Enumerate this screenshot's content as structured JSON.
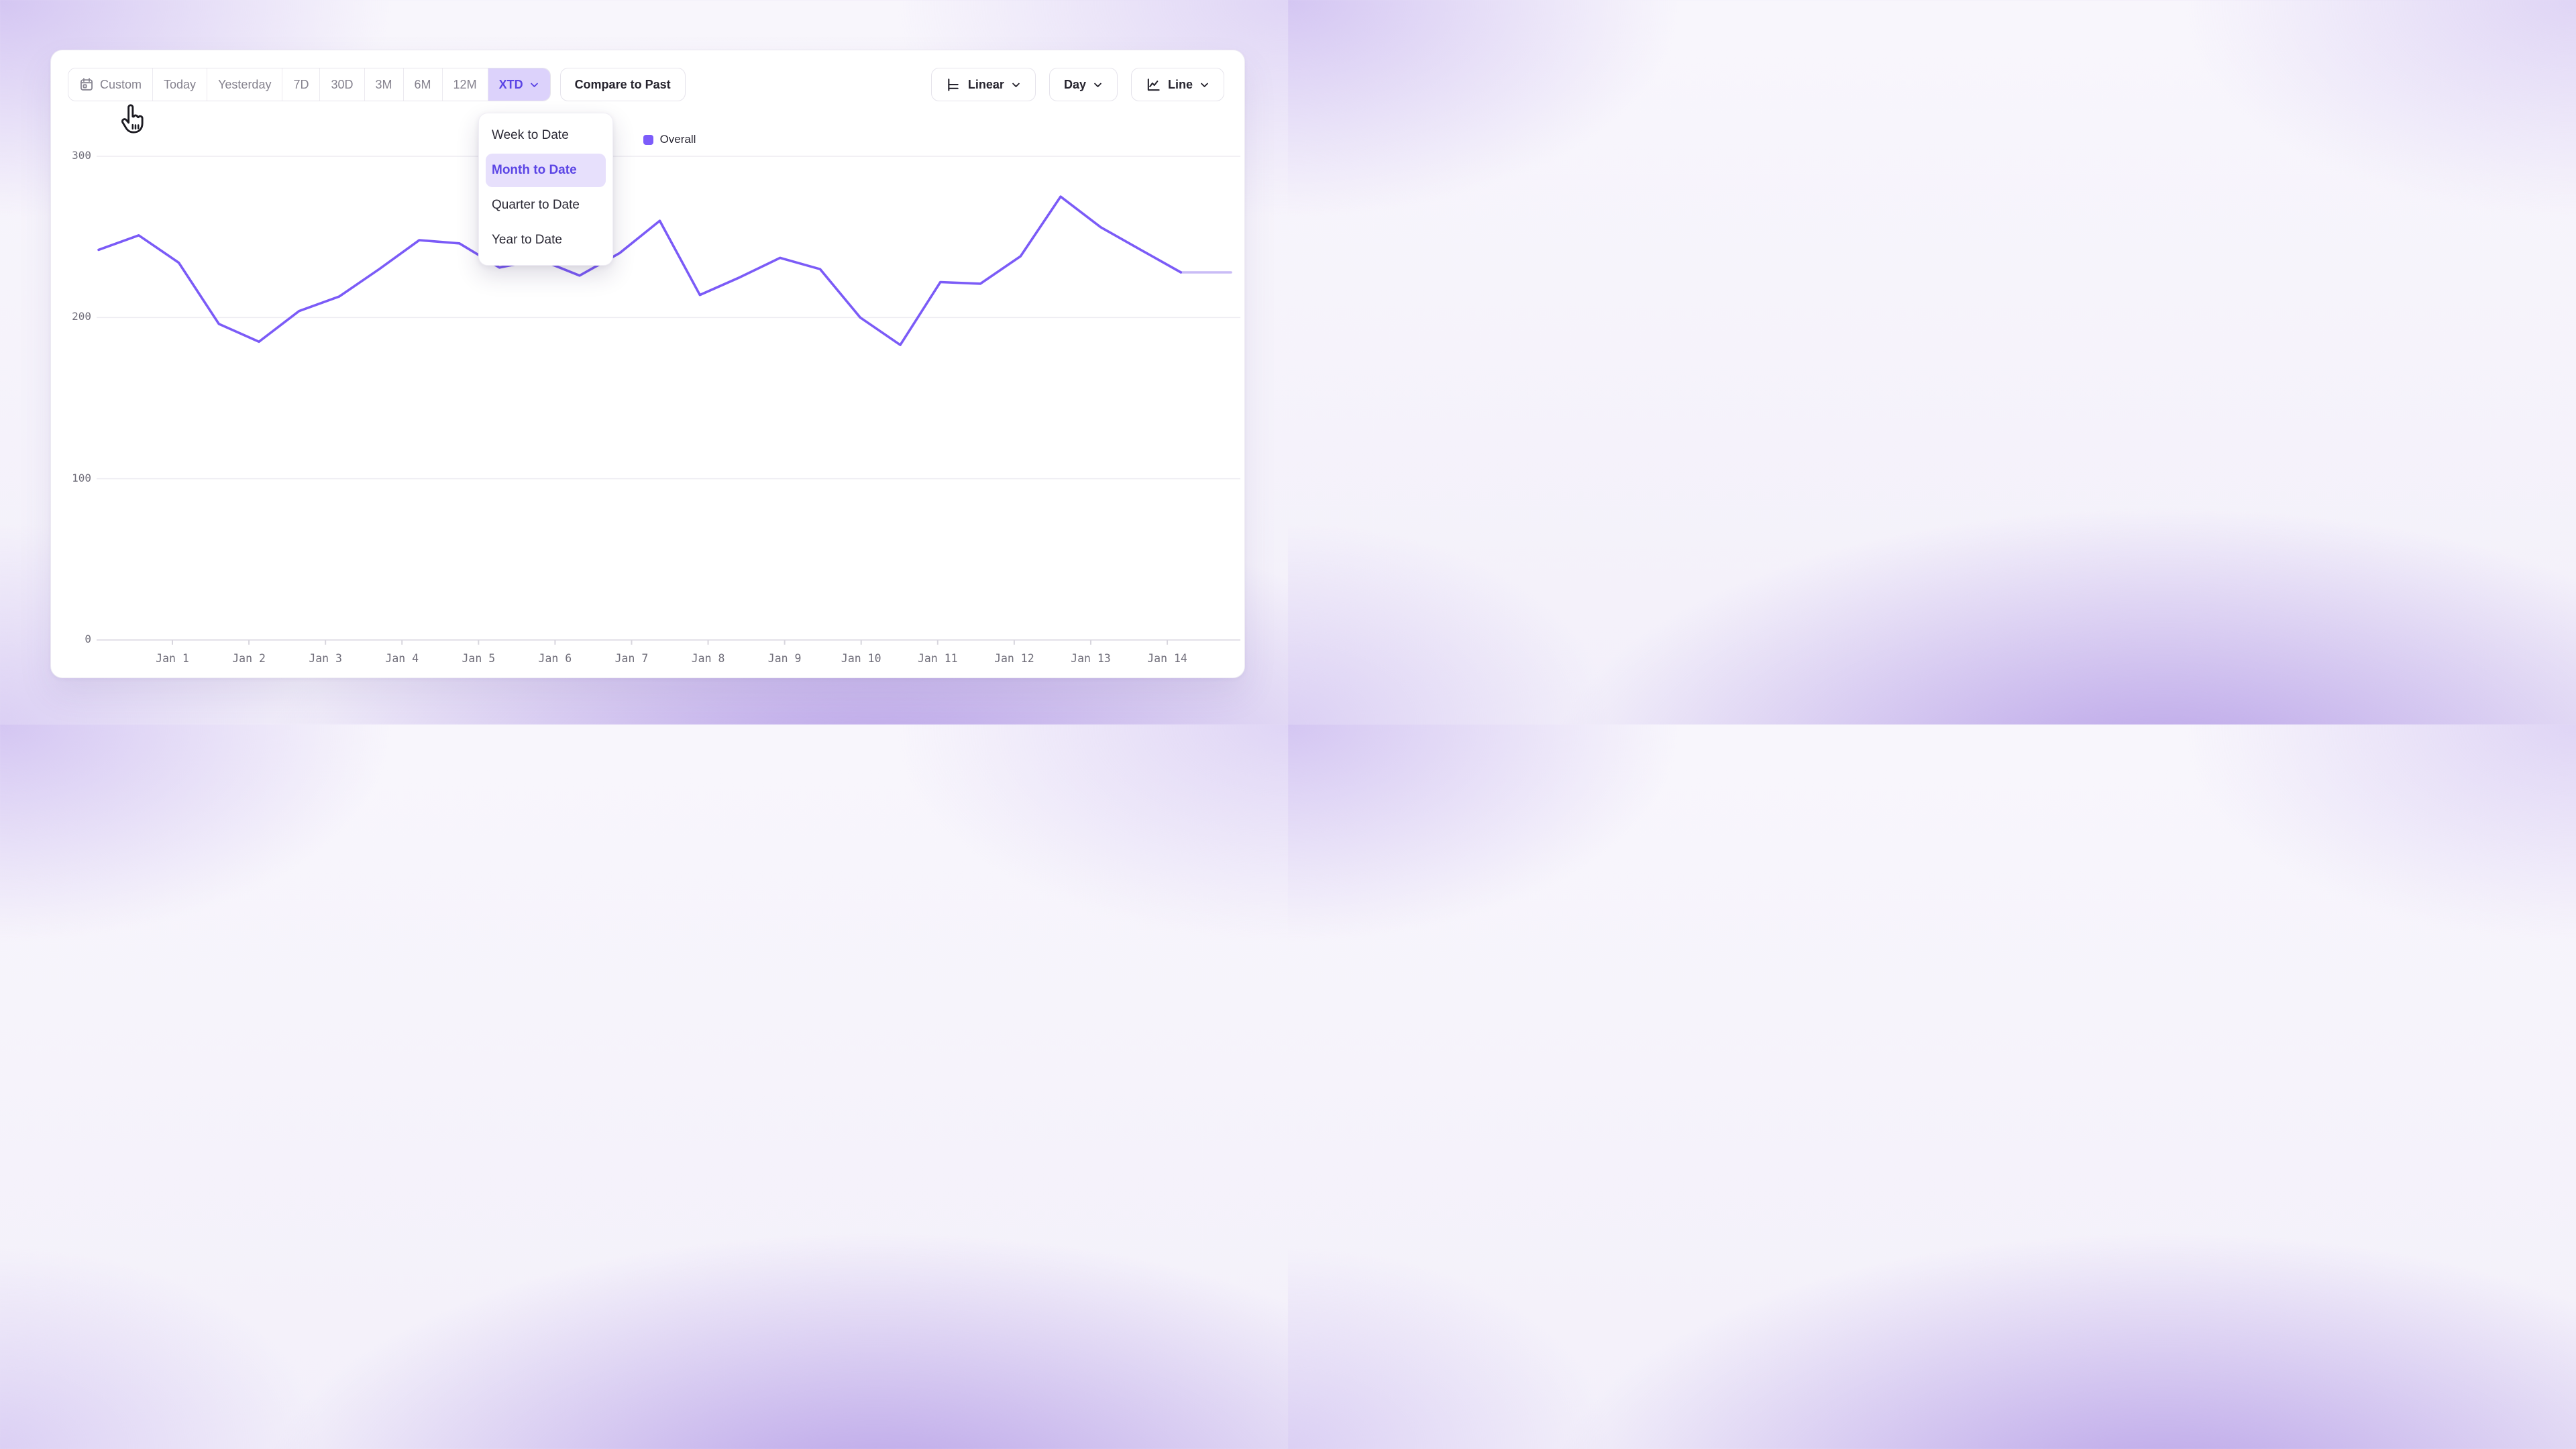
{
  "toolbar": {
    "range_buttons": [
      {
        "label": "Custom",
        "icon": "calendar-icon",
        "active": false,
        "chevron": false
      },
      {
        "label": "Today",
        "icon": null,
        "active": false,
        "chevron": false
      },
      {
        "label": "Yesterday",
        "icon": null,
        "active": false,
        "chevron": false
      },
      {
        "label": "7D",
        "icon": null,
        "active": false,
        "chevron": false
      },
      {
        "label": "30D",
        "icon": null,
        "active": false,
        "chevron": false
      },
      {
        "label": "3M",
        "icon": null,
        "active": false,
        "chevron": false
      },
      {
        "label": "6M",
        "icon": null,
        "active": false,
        "chevron": false
      },
      {
        "label": "12M",
        "icon": null,
        "active": false,
        "chevron": false
      },
      {
        "label": "XTD",
        "icon": null,
        "active": true,
        "chevron": true
      }
    ],
    "compare_label": "Compare to Past",
    "view_controls": [
      {
        "label": "Linear",
        "icon": "linear-scale-icon",
        "chevron": true
      },
      {
        "label": "Day",
        "icon": null,
        "chevron": true
      },
      {
        "label": "Line",
        "icon": "line-chart-icon",
        "chevron": true
      }
    ]
  },
  "range_dropdown": {
    "items": [
      {
        "label": "Week to Date",
        "selected": false
      },
      {
        "label": "Month to Date",
        "selected": true
      },
      {
        "label": "Quarter to Date",
        "selected": false
      },
      {
        "label": "Year to Date",
        "selected": false
      }
    ]
  },
  "colors": {
    "accent": "#5b45e5",
    "accent_bg": "#dcd2fb",
    "menu_highlight_bg": "#e7e0fc",
    "line": "#7b5bf7",
    "line_faded_tail": "#c9bcf6",
    "legend_swatch": "#7c5cfa",
    "gridline": "#edecf1",
    "axis_line": "#e3e1e8",
    "tick_text": "#6f6d79",
    "muted_text": "#85828e",
    "dark_text": "#26242e"
  },
  "chart_data": {
    "type": "line",
    "title": "",
    "legend_entries": [
      {
        "label": "Overall",
        "color": "#7c5cfa"
      }
    ],
    "legend_position": "top-center",
    "grid": "horizontal-only",
    "ylim": [
      0,
      300
    ],
    "yticks": [
      0,
      100,
      200,
      300
    ],
    "ytick_labels": [
      "0",
      "100",
      "200",
      "300"
    ],
    "x_tick_labels": [
      "Jan 1",
      "Jan 2",
      "Jan 3",
      "Jan 4",
      "Jan 5",
      "Jan 6",
      "Jan 7",
      "Jan 8",
      "Jan 9",
      "Jan 10",
      "Jan 11",
      "Jan 12",
      "Jan 13",
      "Jan 14"
    ],
    "series": [
      {
        "name": "Overall",
        "color": "#7b5bf7",
        "values": [
          242,
          251,
          234,
          196,
          185,
          204,
          213,
          230,
          248,
          246,
          231,
          236,
          226,
          240,
          260,
          214,
          225,
          237,
          230,
          200,
          183,
          222,
          221,
          238,
          275,
          256,
          242,
          228,
          228
        ],
        "faded_tail_points": 1
      }
    ]
  }
}
